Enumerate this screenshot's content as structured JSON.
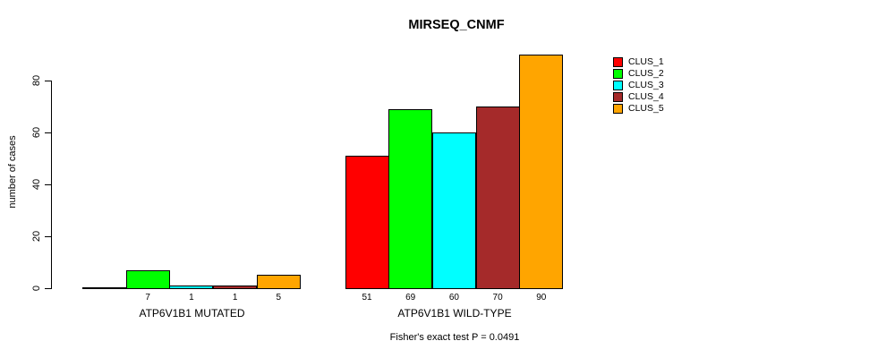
{
  "chart_data": {
    "type": "bar",
    "title": "MIRSEQ_CNMF",
    "ylabel": "number of cases",
    "xlabel": "",
    "ylim": [
      0,
      80
    ],
    "yticks": [
      0,
      20,
      40,
      60,
      80
    ],
    "grid": false,
    "legend_position": "top-right",
    "categories": [
      "ATP6V1B1 MUTATED",
      "ATP6V1B1 WILD-TYPE"
    ],
    "series": [
      {
        "name": "CLUS_1",
        "color": "#FF0000",
        "values": [
          0,
          51
        ]
      },
      {
        "name": "CLUS_2",
        "color": "#00FF00",
        "values": [
          7,
          69
        ]
      },
      {
        "name": "CLUS_3",
        "color": "#00FFFF",
        "values": [
          1,
          60
        ]
      },
      {
        "name": "CLUS_4",
        "color": "#A52A2A",
        "values": [
          1,
          70
        ]
      },
      {
        "name": "CLUS_5",
        "color": "#FFA500",
        "values": [
          5,
          90
        ]
      }
    ],
    "bar_value_labels": [
      [
        "",
        "7",
        "1",
        "1",
        "5"
      ],
      [
        "51",
        "69",
        "60",
        "70",
        "90"
      ]
    ],
    "annotation": "Fisher's exact test P = 0.0491"
  }
}
